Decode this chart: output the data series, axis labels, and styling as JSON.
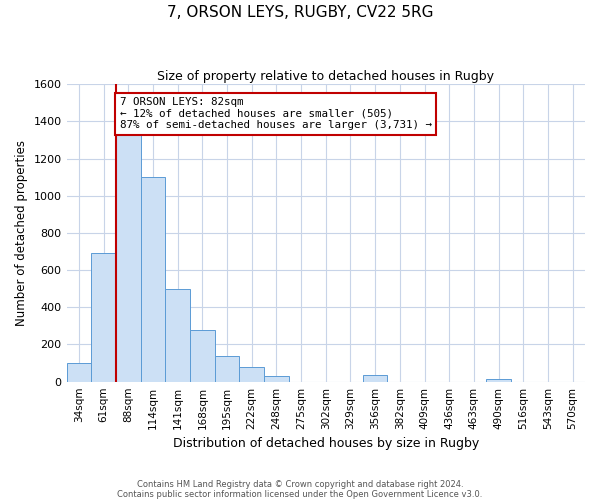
{
  "title": "7, ORSON LEYS, RUGBY, CV22 5RG",
  "subtitle": "Size of property relative to detached houses in Rugby",
  "xlabel": "Distribution of detached houses by size in Rugby",
  "ylabel": "Number of detached properties",
  "bin_labels": [
    "34sqm",
    "61sqm",
    "88sqm",
    "114sqm",
    "141sqm",
    "168sqm",
    "195sqm",
    "222sqm",
    "248sqm",
    "275sqm",
    "302sqm",
    "329sqm",
    "356sqm",
    "382sqm",
    "409sqm",
    "436sqm",
    "463sqm",
    "490sqm",
    "516sqm",
    "543sqm",
    "570sqm"
  ],
  "bar_heights": [
    100,
    690,
    1340,
    1100,
    500,
    280,
    140,
    80,
    30,
    0,
    0,
    0,
    35,
    0,
    0,
    0,
    0,
    15,
    0,
    0,
    0
  ],
  "bar_color": "#cce0f5",
  "bar_edge_color": "#5b9bd5",
  "vline_color": "#c00000",
  "vline_x_index": 2,
  "annotation_text": "7 ORSON LEYS: 82sqm\n← 12% of detached houses are smaller (505)\n87% of semi-detached houses are larger (3,731) →",
  "annotation_box_color": "#ffffff",
  "annotation_box_edge": "#c00000",
  "ylim": [
    0,
    1600
  ],
  "yticks": [
    0,
    200,
    400,
    600,
    800,
    1000,
    1200,
    1400,
    1600
  ],
  "footer_text": "Contains HM Land Registry data © Crown copyright and database right 2024.\nContains public sector information licensed under the Open Government Licence v3.0.",
  "background_color": "#ffffff",
  "grid_color": "#c8d4e8"
}
